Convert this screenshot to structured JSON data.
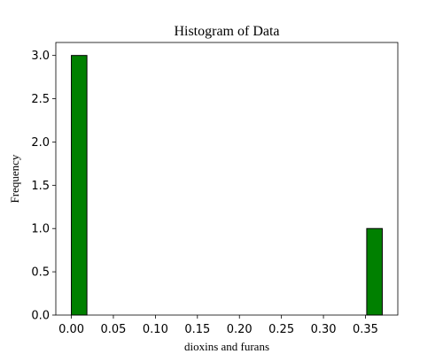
{
  "chart_data": {
    "type": "bar",
    "title": "Histogram of Data",
    "xlabel": "dioxins and furans",
    "ylabel": "Frequency",
    "bars": [
      {
        "x0": 0.0,
        "x1": 0.0185,
        "count": 3
      },
      {
        "x0": 0.3515,
        "x1": 0.37,
        "count": 1
      }
    ],
    "xlim": [
      -0.0185,
      0.3885
    ],
    "ylim": [
      0,
      3.15
    ],
    "xticks": [
      0.0,
      0.05,
      0.1,
      0.15,
      0.2,
      0.25,
      0.3,
      0.35
    ],
    "xtick_labels": [
      "0.00",
      "0.05",
      "0.10",
      "0.15",
      "0.20",
      "0.25",
      "0.30",
      "0.35"
    ],
    "yticks": [
      0.0,
      0.5,
      1.0,
      1.5,
      2.0,
      2.5,
      3.0
    ],
    "ytick_labels": [
      "0.0",
      "0.5",
      "1.0",
      "1.5",
      "2.0",
      "2.5",
      "3.0"
    ],
    "grid": false,
    "bar_color": "#008000",
    "edge_color": "#000000"
  }
}
